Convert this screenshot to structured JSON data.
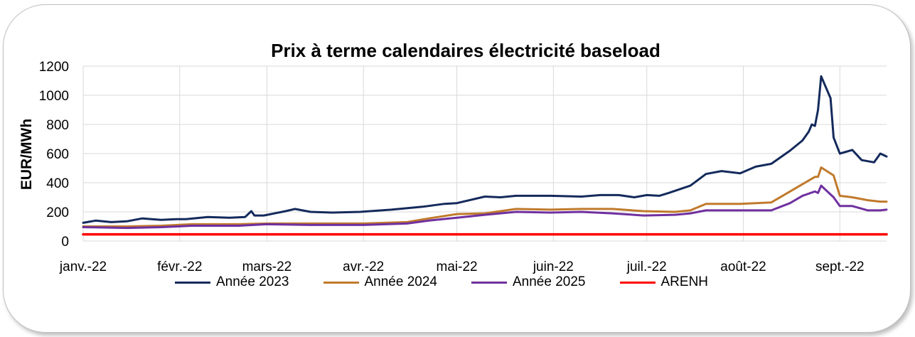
{
  "chart_data": {
    "type": "line",
    "title": "Prix à terme calendaires électricité baseload",
    "ylabel": "EUR/MWh",
    "xlabel": "",
    "ylim": [
      0,
      1200
    ],
    "yticks": [
      0,
      200,
      400,
      600,
      800,
      1000,
      1200
    ],
    "x_tick_labels": [
      "janv.-22",
      "févr.-22",
      "mars-22",
      "avr.-22",
      "mai-22",
      "juin-22",
      "juil.-22",
      "août-22",
      "sept.-22"
    ],
    "x_tick_dates": [
      "2022-01-01",
      "2022-02-01",
      "2022-03-01",
      "2022-04-01",
      "2022-05-01",
      "2022-06-01",
      "2022-07-01",
      "2022-08-01",
      "2022-09-01"
    ],
    "x_range": [
      "2022-01-01",
      "2022-09-16"
    ],
    "grid": "vertical and horizontal",
    "legend_position": "bottom",
    "series": [
      {
        "name": "Année 2023",
        "color": "#142a5c",
        "x": [
          "2022-01-01",
          "2022-01-05",
          "2022-01-10",
          "2022-01-15",
          "2022-01-20",
          "2022-01-26",
          "2022-01-31",
          "2022-02-03",
          "2022-02-10",
          "2022-02-17",
          "2022-02-22",
          "2022-02-24",
          "2022-02-25",
          "2022-02-28",
          "2022-03-07",
          "2022-03-10",
          "2022-03-15",
          "2022-03-22",
          "2022-03-31",
          "2022-04-10",
          "2022-04-20",
          "2022-04-27",
          "2022-05-01",
          "2022-05-10",
          "2022-05-15",
          "2022-05-20",
          "2022-05-31",
          "2022-06-10",
          "2022-06-16",
          "2022-06-22",
          "2022-06-27",
          "2022-07-01",
          "2022-07-05",
          "2022-07-08",
          "2022-07-15",
          "2022-07-20",
          "2022-07-25",
          "2022-07-31",
          "2022-08-05",
          "2022-08-10",
          "2022-08-16",
          "2022-08-20",
          "2022-08-22",
          "2022-08-23",
          "2022-08-24",
          "2022-08-25",
          "2022-08-26",
          "2022-08-29",
          "2022-08-30",
          "2022-09-01",
          "2022-09-05",
          "2022-09-08",
          "2022-09-12",
          "2022-09-14",
          "2022-09-16"
        ],
        "values": [
          125,
          140,
          130,
          135,
          155,
          145,
          150,
          150,
          165,
          160,
          165,
          205,
          175,
          175,
          205,
          220,
          200,
          195,
          200,
          215,
          235,
          255,
          260,
          305,
          300,
          310,
          310,
          305,
          315,
          315,
          300,
          315,
          310,
          330,
          380,
          460,
          480,
          465,
          510,
          530,
          620,
          690,
          750,
          800,
          790,
          900,
          1130,
          980,
          710,
          600,
          625,
          555,
          540,
          600,
          580
        ]
      },
      {
        "name": "Année 2024",
        "color": "#c07a2c",
        "x": [
          "2022-01-01",
          "2022-01-15",
          "2022-01-26",
          "2022-02-05",
          "2022-02-20",
          "2022-03-01",
          "2022-03-15",
          "2022-04-01",
          "2022-04-15",
          "2022-04-22",
          "2022-05-01",
          "2022-05-10",
          "2022-05-20",
          "2022-05-31",
          "2022-06-10",
          "2022-06-20",
          "2022-06-30",
          "2022-07-10",
          "2022-07-15",
          "2022-07-20",
          "2022-07-31",
          "2022-08-10",
          "2022-08-16",
          "2022-08-20",
          "2022-08-24",
          "2022-08-25",
          "2022-08-26",
          "2022-08-30",
          "2022-09-01",
          "2022-09-05",
          "2022-09-10",
          "2022-09-14",
          "2022-09-16"
        ],
        "values": [
          100,
          100,
          105,
          115,
          115,
          120,
          120,
          120,
          130,
          155,
          185,
          190,
          220,
          215,
          220,
          220,
          205,
          200,
          210,
          255,
          255,
          265,
          340,
          390,
          440,
          440,
          505,
          450,
          310,
          300,
          280,
          270,
          270
        ]
      },
      {
        "name": "Année 2025",
        "color": "#7030a0",
        "x": [
          "2022-01-01",
          "2022-01-15",
          "2022-01-26",
          "2022-02-05",
          "2022-02-20",
          "2022-03-01",
          "2022-03-15",
          "2022-04-01",
          "2022-04-15",
          "2022-04-22",
          "2022-05-01",
          "2022-05-10",
          "2022-05-20",
          "2022-05-31",
          "2022-06-10",
          "2022-06-20",
          "2022-06-30",
          "2022-07-10",
          "2022-07-15",
          "2022-07-20",
          "2022-07-31",
          "2022-08-10",
          "2022-08-16",
          "2022-08-20",
          "2022-08-24",
          "2022-08-25",
          "2022-08-26",
          "2022-08-30",
          "2022-09-01",
          "2022-09-05",
          "2022-09-10",
          "2022-09-14",
          "2022-09-16"
        ],
        "values": [
          95,
          90,
          95,
          105,
          105,
          115,
          110,
          110,
          120,
          140,
          160,
          180,
          200,
          195,
          200,
          190,
          175,
          180,
          190,
          210,
          210,
          210,
          260,
          310,
          340,
          330,
          380,
          300,
          240,
          240,
          210,
          210,
          215
        ]
      },
      {
        "name": "ARENH",
        "color": "#ff0000",
        "x": [
          "2022-01-01",
          "2022-09-16"
        ],
        "values": [
          46,
          46
        ]
      }
    ]
  }
}
